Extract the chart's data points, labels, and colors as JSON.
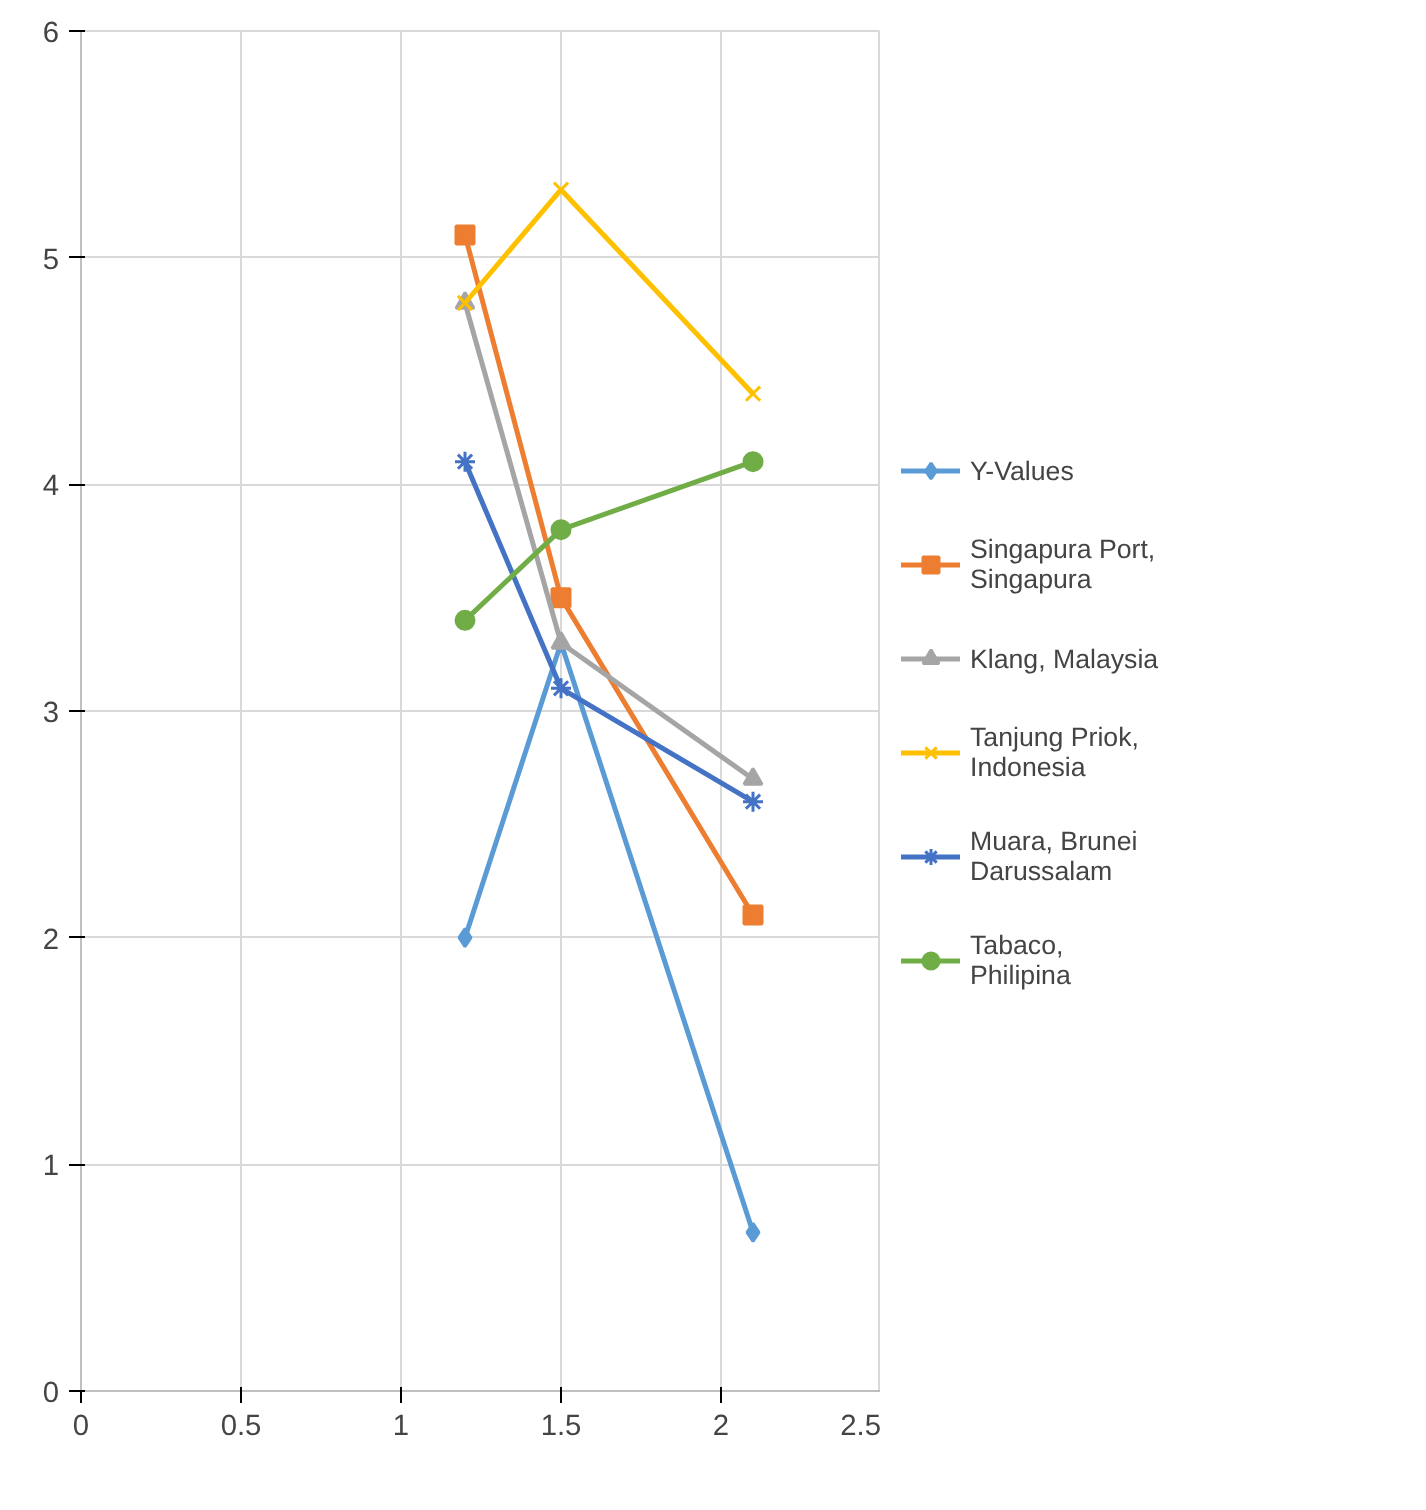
{
  "chart_data": {
    "type": "line",
    "xlim": [
      0,
      2.5
    ],
    "xticks": [
      0,
      0.5,
      1,
      1.5,
      2,
      2.5
    ],
    "ylim": [
      0,
      6
    ],
    "yticks": [
      0,
      1,
      2,
      3,
      4,
      5,
      6
    ],
    "grid": true,
    "legend": "right",
    "line_style": "solid",
    "series": [
      {
        "name": "Y-Values",
        "color": "#5b9bd5",
        "marker": "diamond",
        "x": [
          1.2,
          1.5,
          2.1
        ],
        "values": [
          2.0,
          3.3,
          0.7
        ]
      },
      {
        "name": "Singapura Port, Singapura",
        "color": "#ed7d31",
        "marker": "square",
        "x": [
          1.2,
          1.5,
          2.1
        ],
        "values": [
          5.1,
          3.5,
          2.1
        ]
      },
      {
        "name": "Klang, Malaysia",
        "color": "#a5a5a5",
        "marker": "triangle",
        "x": [
          1.2,
          1.5,
          2.1
        ],
        "values": [
          4.8,
          3.3,
          2.7
        ]
      },
      {
        "name": "Tanjung Priok, Indonesia",
        "color": "#ffc000",
        "marker": "x",
        "x": [
          1.2,
          1.5,
          2.1
        ],
        "values": [
          4.8,
          5.3,
          4.4
        ]
      },
      {
        "name": "Muara, Brunei Darussalam",
        "color": "#4472c4",
        "marker": "cross",
        "x": [
          1.2,
          1.5,
          2.1
        ],
        "values": [
          4.1,
          3.1,
          2.6
        ]
      },
      {
        "name": "Tabaco, Philipina",
        "color": "#70ad47",
        "marker": "circle",
        "x": [
          1.2,
          1.5,
          2.1
        ],
        "values": [
          3.4,
          3.8,
          4.1
        ]
      }
    ]
  }
}
